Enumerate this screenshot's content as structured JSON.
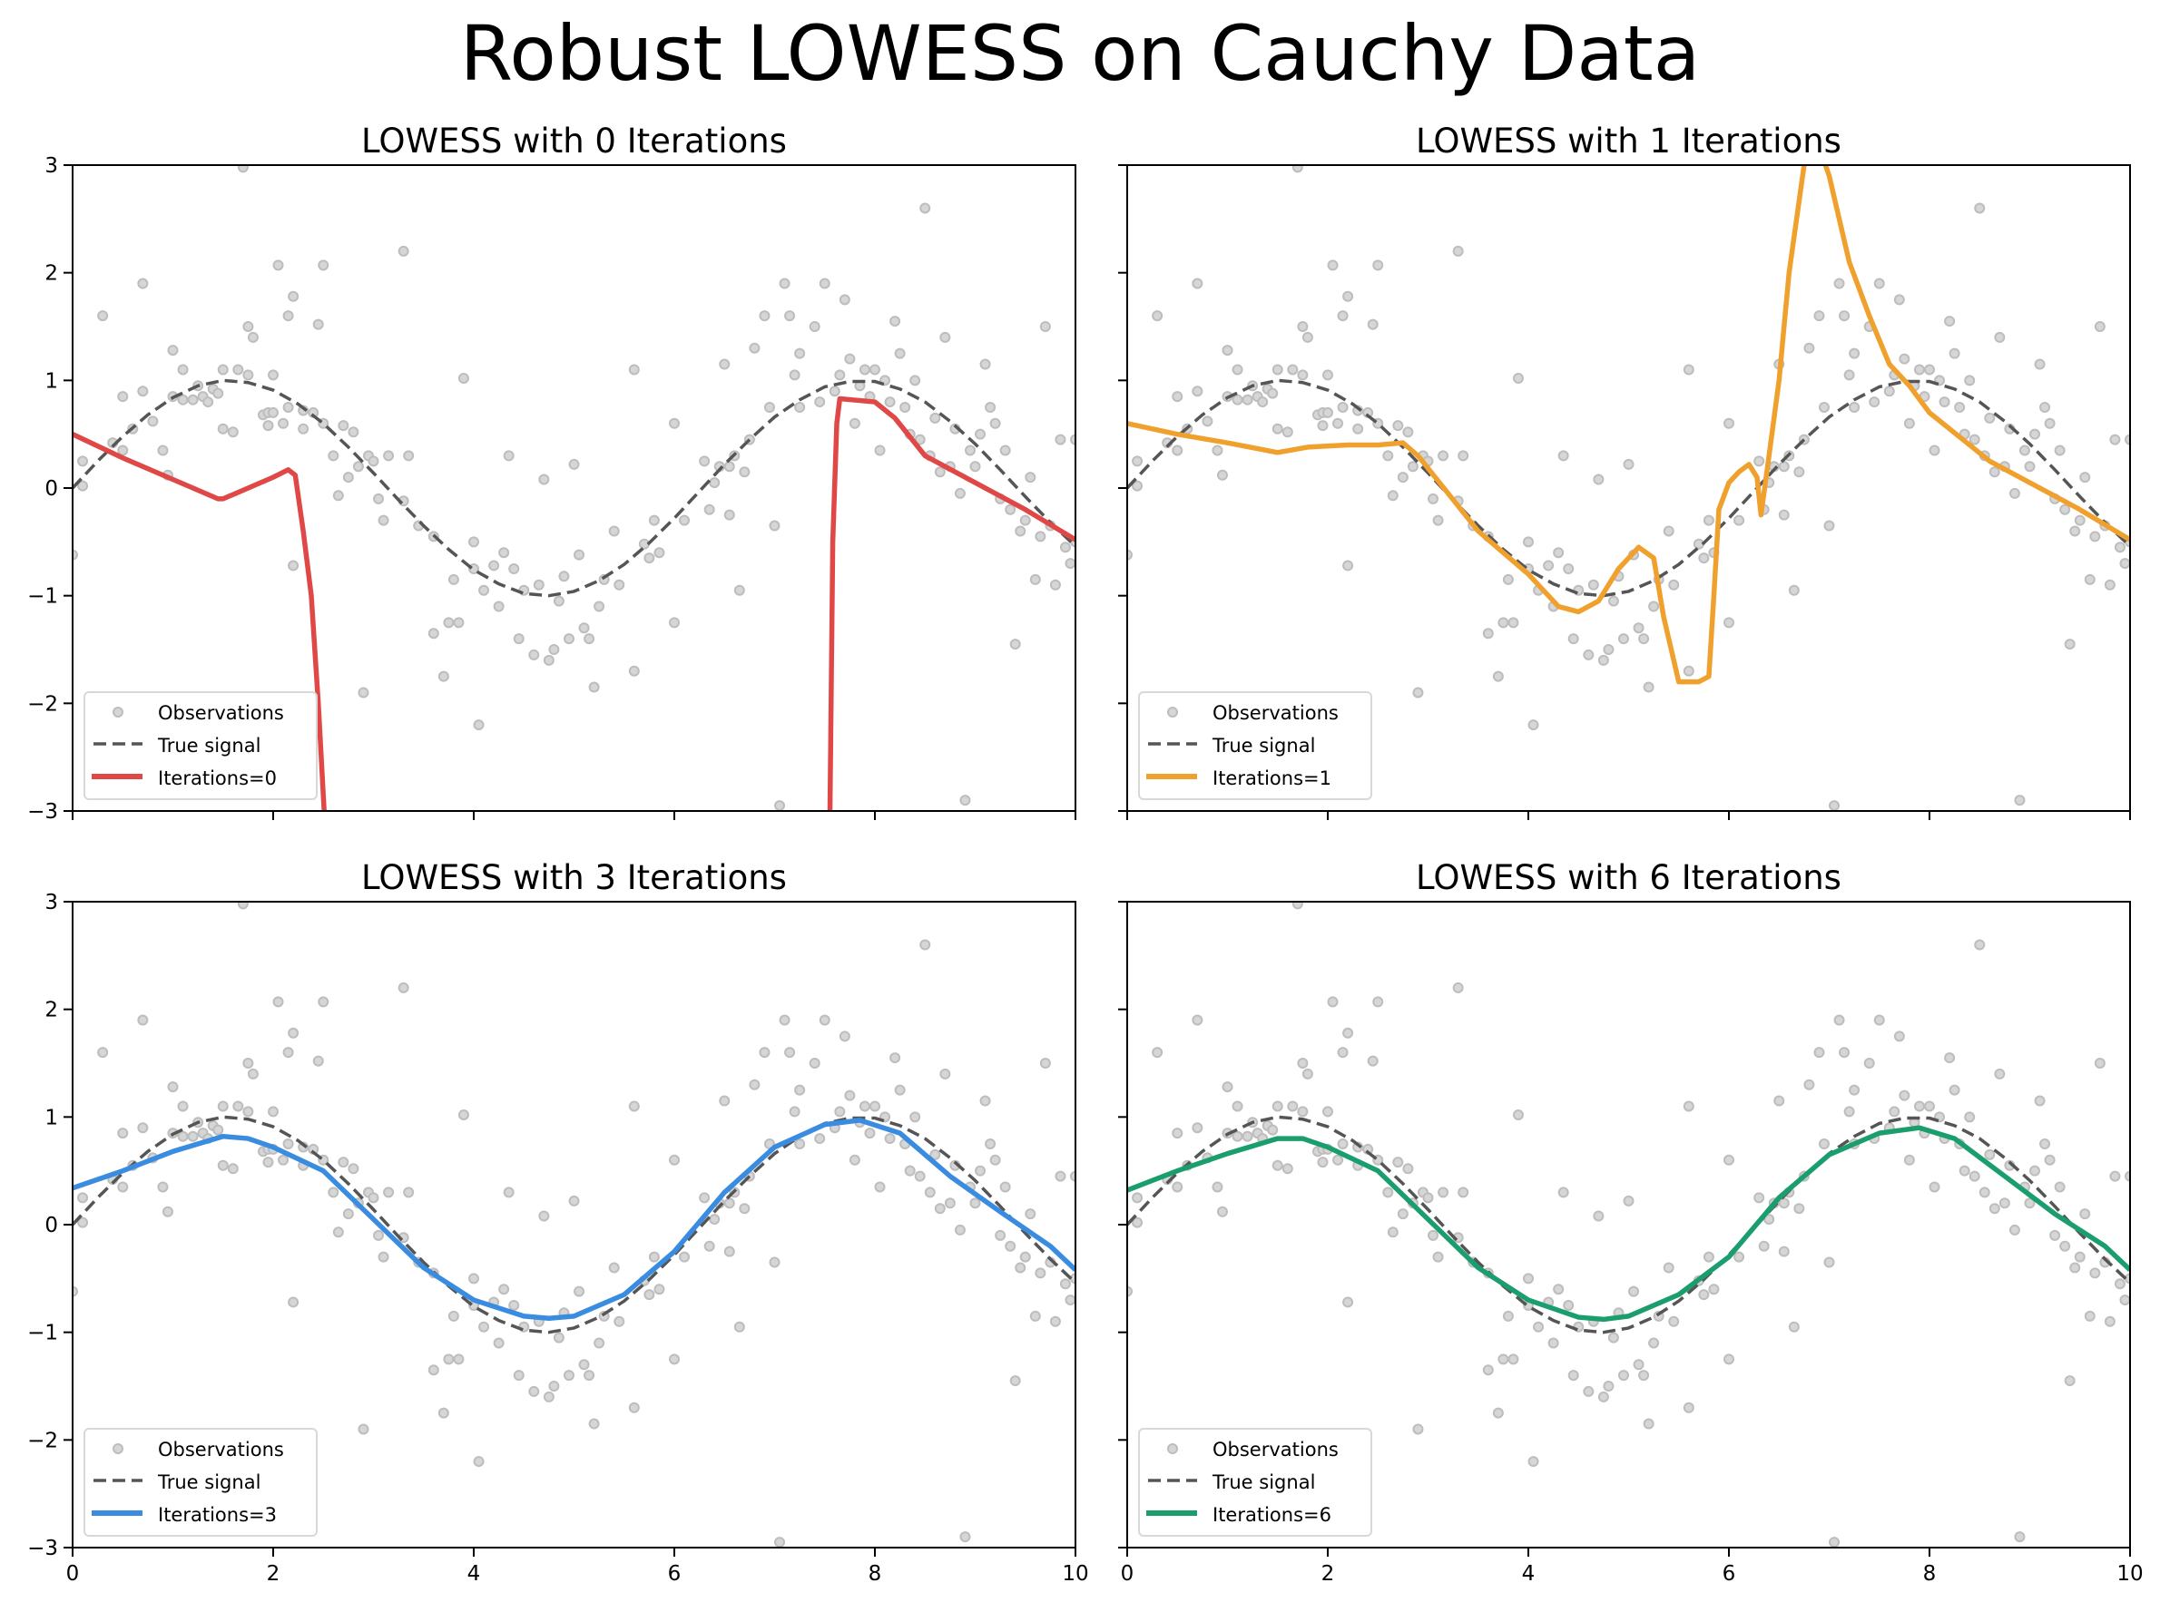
{
  "title": "Robust LOWESS on Cauchy Data",
  "colors": {
    "observations": "#bdbdbd",
    "true_signal": "#555555",
    "iter0": "#e04848",
    "iter1": "#f0a02c",
    "iter3": "#3a8ce0",
    "iter6": "#1b9e6e"
  },
  "chart_data": {
    "type": "scatter+line",
    "layout": "2x2 grid, shared x and y axes",
    "xlim": [
      0,
      10
    ],
    "ylim": [
      -3,
      3
    ],
    "xticks": [
      0,
      2,
      4,
      6,
      8,
      10
    ],
    "yticks": [
      -3,
      -2,
      -1,
      0,
      1,
      2,
      3
    ],
    "grid": false,
    "legend_placement": "lower-left",
    "observations": [
      [
        0,
        -0.62
      ],
      [
        0.1,
        0.25
      ],
      [
        0.1,
        0.02
      ],
      [
        0.3,
        1.6
      ],
      [
        0.4,
        0.42
      ],
      [
        0.5,
        0.35
      ],
      [
        0.5,
        0.85
      ],
      [
        0.6,
        0.55
      ],
      [
        0.7,
        1.9
      ],
      [
        0.7,
        0.9
      ],
      [
        0.8,
        0.62
      ],
      [
        0.9,
        0.35
      ],
      [
        0.95,
        0.12
      ],
      [
        1.0,
        1.28
      ],
      [
        1.0,
        0.85
      ],
      [
        1.1,
        1.1
      ],
      [
        1.1,
        0.82
      ],
      [
        1.2,
        0.82
      ],
      [
        1.25,
        0.95
      ],
      [
        1.3,
        0.85
      ],
      [
        1.35,
        0.8
      ],
      [
        1.4,
        0.92
      ],
      [
        1.45,
        0.88
      ],
      [
        1.5,
        1.1
      ],
      [
        1.5,
        0.55
      ],
      [
        1.6,
        0.52
      ],
      [
        1.65,
        1.1
      ],
      [
        1.7,
        2.98
      ],
      [
        1.75,
        1.5
      ],
      [
        1.75,
        1.05
      ],
      [
        1.8,
        1.4
      ],
      [
        1.9,
        0.68
      ],
      [
        1.95,
        0.7
      ],
      [
        1.95,
        0.58
      ],
      [
        2.0,
        1.05
      ],
      [
        2.0,
        0.7
      ],
      [
        2.05,
        2.07
      ],
      [
        2.1,
        0.6
      ],
      [
        2.15,
        1.6
      ],
      [
        2.15,
        0.75
      ],
      [
        2.2,
        1.78
      ],
      [
        2.2,
        -0.72
      ],
      [
        2.3,
        0.72
      ],
      [
        2.3,
        0.55
      ],
      [
        2.4,
        0.7
      ],
      [
        2.45,
        1.52
      ],
      [
        2.5,
        2.07
      ],
      [
        2.5,
        0.6
      ],
      [
        2.6,
        0.3
      ],
      [
        2.65,
        -0.07
      ],
      [
        2.7,
        0.58
      ],
      [
        2.75,
        0.1
      ],
      [
        2.8,
        0.52
      ],
      [
        2.85,
        0.2
      ],
      [
        2.9,
        -1.9
      ],
      [
        2.95,
        0.3
      ],
      [
        3.0,
        0.25
      ],
      [
        3.05,
        -0.1
      ],
      [
        3.1,
        -0.3
      ],
      [
        3.15,
        0.3
      ],
      [
        3.3,
        2.2
      ],
      [
        3.3,
        -0.12
      ],
      [
        3.35,
        0.3
      ],
      [
        3.45,
        -0.35
      ],
      [
        3.6,
        -1.35
      ],
      [
        3.6,
        -0.45
      ],
      [
        3.7,
        -1.75
      ],
      [
        3.75,
        -1.25
      ],
      [
        3.8,
        -0.85
      ],
      [
        3.85,
        -1.25
      ],
      [
        3.9,
        1.02
      ],
      [
        4.0,
        -0.5
      ],
      [
        4.0,
        -0.75
      ],
      [
        4.05,
        -2.2
      ],
      [
        4.1,
        -0.95
      ],
      [
        4.2,
        -0.72
      ],
      [
        4.25,
        -1.1
      ],
      [
        4.3,
        -0.6
      ],
      [
        4.35,
        0.3
      ],
      [
        4.4,
        -0.75
      ],
      [
        4.45,
        -1.4
      ],
      [
        4.5,
        -0.95
      ],
      [
        4.6,
        -1.55
      ],
      [
        4.65,
        -0.9
      ],
      [
        4.7,
        0.08
      ],
      [
        4.75,
        -1.6
      ],
      [
        4.8,
        -1.5
      ],
      [
        4.85,
        -1.05
      ],
      [
        4.9,
        -0.82
      ],
      [
        4.95,
        -1.4
      ],
      [
        5.0,
        0.22
      ],
      [
        5.05,
        -0.62
      ],
      [
        5.1,
        -1.3
      ],
      [
        5.15,
        -1.4
      ],
      [
        5.2,
        -1.85
      ],
      [
        5.25,
        -1.1
      ],
      [
        5.3,
        -0.85
      ],
      [
        5.4,
        -0.4
      ],
      [
        5.45,
        -0.9
      ],
      [
        5.6,
        1.1
      ],
      [
        5.6,
        -1.7
      ],
      [
        5.7,
        -0.52
      ],
      [
        5.75,
        -0.65
      ],
      [
        5.8,
        -0.3
      ],
      [
        5.85,
        -0.6
      ],
      [
        6.0,
        -1.25
      ],
      [
        6.0,
        0.6
      ],
      [
        6.1,
        -0.3
      ],
      [
        6.3,
        0.25
      ],
      [
        6.35,
        -0.2
      ],
      [
        6.4,
        0.05
      ],
      [
        6.45,
        0.2
      ],
      [
        6.5,
        1.15
      ],
      [
        6.55,
        0.2
      ],
      [
        6.55,
        -0.25
      ],
      [
        6.6,
        0.3
      ],
      [
        6.65,
        -0.95
      ],
      [
        6.7,
        0.15
      ],
      [
        6.75,
        0.45
      ],
      [
        6.8,
        1.3
      ],
      [
        6.9,
        1.6
      ],
      [
        6.95,
        0.75
      ],
      [
        7.0,
        -0.35
      ],
      [
        7.05,
        -2.95
      ],
      [
        7.1,
        1.9
      ],
      [
        7.15,
        1.6
      ],
      [
        7.2,
        1.05
      ],
      [
        7.25,
        0.75
      ],
      [
        7.25,
        1.25
      ],
      [
        7.4,
        1.5
      ],
      [
        7.45,
        0.8
      ],
      [
        7.5,
        1.9
      ],
      [
        7.6,
        0.9
      ],
      [
        7.65,
        1.05
      ],
      [
        7.7,
        1.75
      ],
      [
        7.75,
        1.2
      ],
      [
        7.8,
        0.6
      ],
      [
        7.85,
        0.95
      ],
      [
        7.9,
        1.1
      ],
      [
        7.95,
        0.85
      ],
      [
        8.0,
        1.1
      ],
      [
        8.05,
        0.35
      ],
      [
        8.1,
        1.0
      ],
      [
        8.15,
        0.8
      ],
      [
        8.2,
        1.55
      ],
      [
        8.25,
        1.25
      ],
      [
        8.3,
        0.75
      ],
      [
        8.35,
        0.5
      ],
      [
        8.4,
        1.0
      ],
      [
        8.45,
        0.45
      ],
      [
        8.5,
        2.6
      ],
      [
        8.55,
        0.3
      ],
      [
        8.6,
        0.65
      ],
      [
        8.65,
        0.15
      ],
      [
        8.7,
        1.4
      ],
      [
        8.75,
        0.2
      ],
      [
        8.8,
        0.55
      ],
      [
        8.85,
        -0.05
      ],
      [
        8.9,
        -2.9
      ],
      [
        8.95,
        0.35
      ],
      [
        9.0,
        0.2
      ],
      [
        9.05,
        0.5
      ],
      [
        9.1,
        1.15
      ],
      [
        9.15,
        0.75
      ],
      [
        9.2,
        0.6
      ],
      [
        9.25,
        -0.1
      ],
      [
        9.3,
        0.35
      ],
      [
        9.35,
        -0.2
      ],
      [
        9.4,
        -1.45
      ],
      [
        9.45,
        -0.4
      ],
      [
        9.5,
        -0.3
      ],
      [
        9.55,
        0.1
      ],
      [
        9.6,
        -0.85
      ],
      [
        9.65,
        -0.45
      ],
      [
        9.7,
        1.5
      ],
      [
        9.75,
        -0.35
      ],
      [
        9.8,
        -0.9
      ],
      [
        9.85,
        0.45
      ],
      [
        9.9,
        -0.55
      ],
      [
        9.95,
        -0.7
      ],
      [
        10,
        0.45
      ],
      [
        10,
        -0.5
      ]
    ],
    "true_signal": {
      "x": [
        0,
        0.25,
        0.5,
        0.75,
        1,
        1.25,
        1.5,
        1.75,
        2,
        2.25,
        2.5,
        2.75,
        3,
        3.25,
        3.5,
        3.75,
        4,
        4.25,
        4.5,
        4.75,
        5,
        5.25,
        5.5,
        5.75,
        6,
        6.25,
        6.5,
        6.75,
        7,
        7.25,
        7.5,
        7.75,
        8,
        8.25,
        8.5,
        8.75,
        9,
        9.25,
        9.5,
        9.75,
        10
      ],
      "y": [
        0,
        0.25,
        0.48,
        0.68,
        0.84,
        0.95,
        1.0,
        0.98,
        0.91,
        0.78,
        0.6,
        0.38,
        0.14,
        -0.11,
        -0.35,
        -0.57,
        -0.76,
        -0.89,
        -0.98,
        -1.0,
        -0.96,
        -0.86,
        -0.71,
        -0.51,
        -0.28,
        -0.03,
        0.22,
        0.45,
        0.66,
        0.82,
        0.94,
        0.99,
        0.99,
        0.92,
        0.8,
        0.62,
        0.41,
        0.17,
        -0.08,
        -0.32,
        -0.54
      ]
    },
    "panels": [
      {
        "title": "LOWESS with 0 Iterations",
        "legend": [
          "Observations",
          "True signal",
          "Iterations=0"
        ],
        "color_key": "iter0",
        "show_xticklabels": false,
        "show_yticklabels": true,
        "fit": [
          [
            [
              0,
              0.5
            ],
            [
              0.5,
              0.28
            ],
            [
              1,
              0.08
            ],
            [
              1.45,
              -0.1
            ],
            [
              1.5,
              -0.1
            ],
            [
              2,
              0.1
            ],
            [
              2.15,
              0.17
            ],
            [
              2.22,
              0.12
            ],
            [
              2.3,
              -0.4
            ],
            [
              2.38,
              -1.0
            ],
            [
              2.45,
              -2.0
            ],
            [
              2.52,
              -3.2
            ]
          ],
          [
            [
              7.55,
              -3.2
            ],
            [
              7.58,
              -0.5
            ],
            [
              7.62,
              0.6
            ],
            [
              7.65,
              0.83
            ],
            [
              8.0,
              0.8
            ],
            [
              8.2,
              0.65
            ],
            [
              8.5,
              0.3
            ],
            [
              9,
              0.05
            ],
            [
              9.5,
              -0.2
            ],
            [
              10,
              -0.48
            ]
          ]
        ]
      },
      {
        "title": "LOWESS with 1 Iterations",
        "legend": [
          "Observations",
          "True signal",
          "Iterations=1"
        ],
        "color_key": "iter1",
        "show_xticklabels": false,
        "show_yticklabels": false,
        "fit": [
          [
            [
              0,
              0.6
            ],
            [
              0.5,
              0.5
            ],
            [
              1,
              0.42
            ],
            [
              1.5,
              0.33
            ],
            [
              1.8,
              0.38
            ],
            [
              2.2,
              0.4
            ],
            [
              2.5,
              0.4
            ],
            [
              2.75,
              0.42
            ],
            [
              2.9,
              0.3
            ],
            [
              3.2,
              -0.05
            ],
            [
              3.5,
              -0.4
            ],
            [
              4,
              -0.8
            ],
            [
              4.3,
              -1.1
            ],
            [
              4.5,
              -1.15
            ],
            [
              4.7,
              -1.05
            ],
            [
              4.9,
              -0.75
            ],
            [
              5.1,
              -0.55
            ],
            [
              5.25,
              -0.65
            ],
            [
              5.35,
              -1.2
            ],
            [
              5.5,
              -1.8
            ],
            [
              5.7,
              -1.8
            ],
            [
              5.8,
              -1.75
            ],
            [
              5.85,
              -1.0
            ],
            [
              5.9,
              -0.2
            ],
            [
              6.0,
              0.05
            ],
            [
              6.1,
              0.15
            ],
            [
              6.2,
              0.22
            ],
            [
              6.28,
              0.1
            ],
            [
              6.32,
              -0.25
            ],
            [
              6.4,
              0.3
            ],
            [
              6.5,
              1.0
            ],
            [
              6.6,
              2.0
            ],
            [
              6.75,
              3.0
            ],
            [
              6.85,
              3.3
            ],
            [
              7.0,
              2.9
            ],
            [
              7.2,
              2.1
            ],
            [
              7.4,
              1.6
            ],
            [
              7.6,
              1.15
            ],
            [
              7.8,
              0.95
            ],
            [
              8.0,
              0.7
            ],
            [
              8.2,
              0.55
            ],
            [
              8.4,
              0.4
            ],
            [
              8.6,
              0.25
            ],
            [
              9,
              0.05
            ],
            [
              9.5,
              -0.2
            ],
            [
              10,
              -0.48
            ]
          ]
        ]
      },
      {
        "title": "LOWESS with 3 Iterations",
        "legend": [
          "Observations",
          "True signal",
          "Iterations=3"
        ],
        "color_key": "iter3",
        "show_xticklabels": true,
        "show_yticklabels": true,
        "fit": [
          [
            [
              0,
              0.34
            ],
            [
              0.5,
              0.5
            ],
            [
              1,
              0.68
            ],
            [
              1.5,
              0.82
            ],
            [
              1.75,
              0.8
            ],
            [
              2,
              0.72
            ],
            [
              2.5,
              0.5
            ],
            [
              3,
              0.05
            ],
            [
              3.5,
              -0.4
            ],
            [
              4,
              -0.7
            ],
            [
              4.5,
              -0.85
            ],
            [
              4.75,
              -0.87
            ],
            [
              5,
              -0.85
            ],
            [
              5.5,
              -0.65
            ],
            [
              6,
              -0.25
            ],
            [
              6.5,
              0.3
            ],
            [
              7,
              0.72
            ],
            [
              7.5,
              0.93
            ],
            [
              7.85,
              0.97
            ],
            [
              8.25,
              0.85
            ],
            [
              8.75,
              0.45
            ],
            [
              9.25,
              0.12
            ],
            [
              9.75,
              -0.2
            ],
            [
              10,
              -0.42
            ]
          ]
        ]
      },
      {
        "title": "LOWESS with 6 Iterations",
        "legend": [
          "Observations",
          "True signal",
          "Iterations=6"
        ],
        "color_key": "iter6",
        "show_xticklabels": true,
        "show_yticklabels": false,
        "fit": [
          [
            [
              0,
              0.32
            ],
            [
              0.5,
              0.5
            ],
            [
              1,
              0.66
            ],
            [
              1.5,
              0.8
            ],
            [
              1.75,
              0.8
            ],
            [
              2,
              0.72
            ],
            [
              2.5,
              0.5
            ],
            [
              3,
              0.05
            ],
            [
              3.5,
              -0.4
            ],
            [
              4,
              -0.7
            ],
            [
              4.5,
              -0.86
            ],
            [
              4.75,
              -0.88
            ],
            [
              5,
              -0.85
            ],
            [
              5.5,
              -0.65
            ],
            [
              6,
              -0.3
            ],
            [
              6.5,
              0.25
            ],
            [
              7,
              0.65
            ],
            [
              7.5,
              0.85
            ],
            [
              7.9,
              0.9
            ],
            [
              8.25,
              0.8
            ],
            [
              8.75,
              0.45
            ],
            [
              9.25,
              0.1
            ],
            [
              9.75,
              -0.2
            ],
            [
              10,
              -0.42
            ]
          ]
        ]
      }
    ]
  }
}
